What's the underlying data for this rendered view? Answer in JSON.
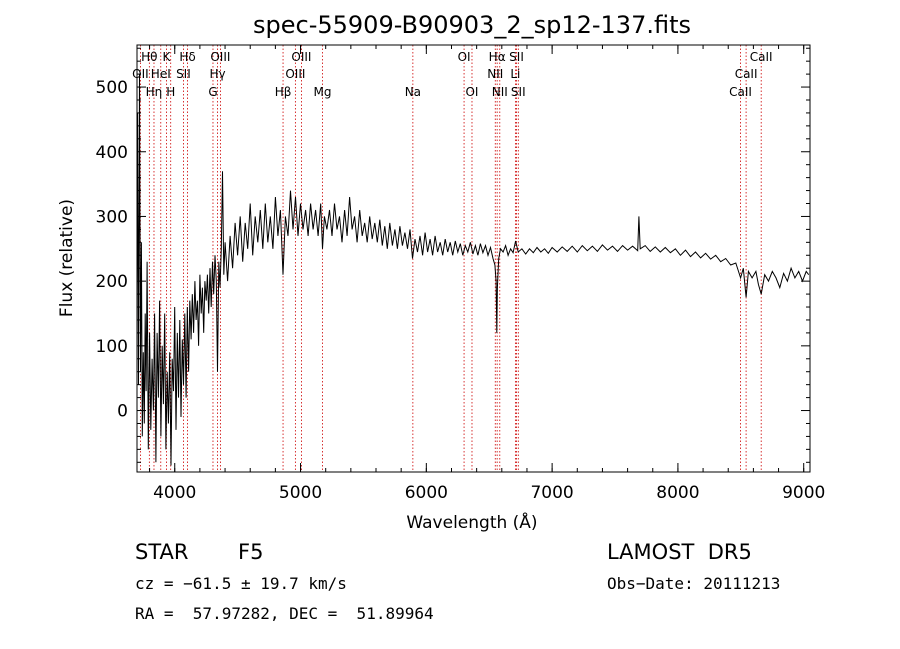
{
  "chart_data": {
    "type": "line",
    "title": "spec-55909-B90903_2_sp12-137.fits",
    "xlabel": "Wavelength (Å)",
    "ylabel": "Flux (relative)",
    "xlim": [
      3700,
      9050
    ],
    "ylim": [
      -95,
      565
    ],
    "xticks": [
      4000,
      5000,
      6000,
      7000,
      8000,
      9000
    ],
    "yticks": [
      0,
      100,
      200,
      300,
      400,
      500
    ],
    "series": [
      {
        "points": [
          [
            3700,
            180
          ],
          [
            3705,
            460
          ],
          [
            3712,
            40
          ],
          [
            3720,
            520
          ],
          [
            3728,
            60
          ],
          [
            3735,
            260
          ],
          [
            3742,
            -40
          ],
          [
            3750,
            90
          ],
          [
            3758,
            -20
          ],
          [
            3765,
            150
          ],
          [
            3772,
            30
          ],
          [
            3780,
            230
          ],
          [
            3790,
            -60
          ],
          [
            3800,
            120
          ],
          [
            3810,
            -30
          ],
          [
            3820,
            80
          ],
          [
            3830,
            0
          ],
          [
            3840,
            150
          ],
          [
            3850,
            -80
          ],
          [
            3860,
            120
          ],
          [
            3870,
            20
          ],
          [
            3880,
            170
          ],
          [
            3890,
            -40
          ],
          [
            3900,
            100
          ],
          [
            3910,
            10
          ],
          [
            3920,
            150
          ],
          [
            3930,
            -60
          ],
          [
            3940,
            60
          ],
          [
            3950,
            -20
          ],
          [
            3960,
            90
          ],
          [
            3970,
            -85
          ],
          [
            3980,
            80
          ],
          [
            3990,
            30
          ],
          [
            4000,
            160
          ],
          [
            4010,
            -30
          ],
          [
            4020,
            120
          ],
          [
            4030,
            20
          ],
          [
            4040,
            140
          ],
          [
            4050,
            -10
          ],
          [
            4060,
            110
          ],
          [
            4070,
            40
          ],
          [
            4080,
            150
          ],
          [
            4090,
            20
          ],
          [
            4100,
            160
          ],
          [
            4110,
            60
          ],
          [
            4120,
            170
          ],
          [
            4130,
            110
          ],
          [
            4140,
            180
          ],
          [
            4150,
            120
          ],
          [
            4160,
            200
          ],
          [
            4170,
            140
          ],
          [
            4180,
            170
          ],
          [
            4190,
            100
          ],
          [
            4200,
            210
          ],
          [
            4210,
            150
          ],
          [
            4220,
            190
          ],
          [
            4230,
            120
          ],
          [
            4240,
            200
          ],
          [
            4250,
            170
          ],
          [
            4260,
            210
          ],
          [
            4270,
            150
          ],
          [
            4280,
            220
          ],
          [
            4290,
            160
          ],
          [
            4300,
            230
          ],
          [
            4310,
            180
          ],
          [
            4320,
            240
          ],
          [
            4330,
            200
          ],
          [
            4340,
            60
          ],
          [
            4350,
            230
          ],
          [
            4360,
            190
          ],
          [
            4370,
            250
          ],
          [
            4380,
            370
          ],
          [
            4390,
            210
          ],
          [
            4400,
            260
          ],
          [
            4420,
            200
          ],
          [
            4440,
            270
          ],
          [
            4460,
            220
          ],
          [
            4480,
            290
          ],
          [
            4500,
            240
          ],
          [
            4520,
            300
          ],
          [
            4540,
            230
          ],
          [
            4560,
            290
          ],
          [
            4580,
            250
          ],
          [
            4600,
            320
          ],
          [
            4620,
            240
          ],
          [
            4640,
            300
          ],
          [
            4660,
            260
          ],
          [
            4680,
            310
          ],
          [
            4700,
            250
          ],
          [
            4720,
            320
          ],
          [
            4740,
            260
          ],
          [
            4760,
            300
          ],
          [
            4780,
            250
          ],
          [
            4800,
            330
          ],
          [
            4820,
            270
          ],
          [
            4840,
            310
          ],
          [
            4861,
            210
          ],
          [
            4880,
            300
          ],
          [
            4900,
            270
          ],
          [
            4920,
            340
          ],
          [
            4940,
            280
          ],
          [
            4960,
            330
          ],
          [
            4980,
            270
          ],
          [
            5000,
            320
          ],
          [
            5020,
            280
          ],
          [
            5040,
            310
          ],
          [
            5060,
            270
          ],
          [
            5080,
            320
          ],
          [
            5100,
            280
          ],
          [
            5120,
            310
          ],
          [
            5140,
            270
          ],
          [
            5160,
            320
          ],
          [
            5175,
            250
          ],
          [
            5190,
            300
          ],
          [
            5210,
            280
          ],
          [
            5230,
            310
          ],
          [
            5250,
            270
          ],
          [
            5270,
            320
          ],
          [
            5290,
            280
          ],
          [
            5310,
            300
          ],
          [
            5330,
            260
          ],
          [
            5350,
            310
          ],
          [
            5370,
            270
          ],
          [
            5390,
            330
          ],
          [
            5410,
            280
          ],
          [
            5430,
            300
          ],
          [
            5450,
            260
          ],
          [
            5470,
            310
          ],
          [
            5490,
            270
          ],
          [
            5510,
            290
          ],
          [
            5530,
            260
          ],
          [
            5550,
            300
          ],
          [
            5570,
            265
          ],
          [
            5590,
            290
          ],
          [
            5610,
            260
          ],
          [
            5630,
            295
          ],
          [
            5650,
            255
          ],
          [
            5670,
            285
          ],
          [
            5690,
            250
          ],
          [
            5710,
            290
          ],
          [
            5730,
            255
          ],
          [
            5750,
            280
          ],
          [
            5770,
            250
          ],
          [
            5790,
            285
          ],
          [
            5810,
            255
          ],
          [
            5830,
            275
          ],
          [
            5850,
            250
          ],
          [
            5870,
            280
          ],
          [
            5890,
            235
          ],
          [
            5910,
            265
          ],
          [
            5930,
            245
          ],
          [
            5950,
            270
          ],
          [
            5970,
            240
          ],
          [
            5990,
            275
          ],
          [
            6010,
            245
          ],
          [
            6030,
            265
          ],
          [
            6050,
            240
          ],
          [
            6070,
            270
          ],
          [
            6090,
            245
          ],
          [
            6110,
            260
          ],
          [
            6130,
            240
          ],
          [
            6150,
            265
          ],
          [
            6170,
            245
          ],
          [
            6190,
            260
          ],
          [
            6210,
            240
          ],
          [
            6230,
            262
          ],
          [
            6250,
            245
          ],
          [
            6270,
            258
          ],
          [
            6290,
            240
          ],
          [
            6310,
            255
          ],
          [
            6330,
            245
          ],
          [
            6350,
            260
          ],
          [
            6370,
            242
          ],
          [
            6390,
            255
          ],
          [
            6410,
            240
          ],
          [
            6430,
            258
          ],
          [
            6450,
            244
          ],
          [
            6470,
            255
          ],
          [
            6490,
            240
          ],
          [
            6510,
            252
          ],
          [
            6530,
            235
          ],
          [
            6545,
            225
          ],
          [
            6555,
            200
          ],
          [
            6560,
            120
          ],
          [
            6565,
            190
          ],
          [
            6575,
            235
          ],
          [
            6590,
            250
          ],
          [
            6610,
            245
          ],
          [
            6630,
            255
          ],
          [
            6650,
            240
          ],
          [
            6670,
            250
          ],
          [
            6690,
            244
          ],
          [
            6710,
            262
          ],
          [
            6730,
            245
          ],
          [
            6760,
            250
          ],
          [
            6790,
            242
          ],
          [
            6820,
            250
          ],
          [
            6850,
            244
          ],
          [
            6880,
            252
          ],
          [
            6910,
            245
          ],
          [
            6940,
            250
          ],
          [
            6970,
            243
          ],
          [
            7000,
            252
          ],
          [
            7040,
            245
          ],
          [
            7080,
            253
          ],
          [
            7120,
            246
          ],
          [
            7160,
            254
          ],
          [
            7200,
            245
          ],
          [
            7240,
            255
          ],
          [
            7280,
            247
          ],
          [
            7320,
            254
          ],
          [
            7360,
            246
          ],
          [
            7400,
            256
          ],
          [
            7440,
            248
          ],
          [
            7480,
            254
          ],
          [
            7520,
            246
          ],
          [
            7560,
            255
          ],
          [
            7600,
            248
          ],
          [
            7640,
            254
          ],
          [
            7680,
            247
          ],
          [
            7690,
            300
          ],
          [
            7700,
            250
          ],
          [
            7740,
            255
          ],
          [
            7780,
            246
          ],
          [
            7820,
            253
          ],
          [
            7860,
            245
          ],
          [
            7900,
            252
          ],
          [
            7940,
            244
          ],
          [
            7980,
            250
          ],
          [
            8020,
            240
          ],
          [
            8060,
            248
          ],
          [
            8100,
            238
          ],
          [
            8140,
            245
          ],
          [
            8180,
            236
          ],
          [
            8220,
            243
          ],
          [
            8260,
            234
          ],
          [
            8300,
            240
          ],
          [
            8340,
            230
          ],
          [
            8380,
            235
          ],
          [
            8420,
            225
          ],
          [
            8460,
            228
          ],
          [
            8498,
            205
          ],
          [
            8520,
            220
          ],
          [
            8542,
            175
          ],
          [
            8560,
            215
          ],
          [
            8590,
            205
          ],
          [
            8620,
            215
          ],
          [
            8640,
            195
          ],
          [
            8662,
            180
          ],
          [
            8690,
            210
          ],
          [
            8720,
            200
          ],
          [
            8750,
            215
          ],
          [
            8780,
            205
          ],
          [
            8810,
            190
          ],
          [
            8840,
            212
          ],
          [
            8870,
            200
          ],
          [
            8900,
            220
          ],
          [
            8930,
            205
          ],
          [
            8960,
            215
          ],
          [
            8990,
            200
          ],
          [
            9020,
            215
          ],
          [
            9040,
            210
          ]
        ]
      }
    ],
    "lines": [
      {
        "label": "Hθ",
        "x": 3798,
        "row": 0
      },
      {
        "label": "K",
        "x": 3934,
        "row": 0
      },
      {
        "label": "Hδ",
        "x": 4102,
        "row": 0
      },
      {
        "label": "OIII",
        "x": 4363,
        "row": 0
      },
      {
        "label": "OIII",
        "x": 5007,
        "row": 0
      },
      {
        "label": "OI",
        "x": 6300,
        "row": 0
      },
      {
        "label": "Hα",
        "x": 6563,
        "row": 0
      },
      {
        "label": "SII",
        "x": 6717,
        "row": 0
      },
      {
        "label": "CaII",
        "x": 8662,
        "row": 0
      },
      {
        "label": "OII",
        "x": 3727,
        "row": 1
      },
      {
        "label": "HeI",
        "x": 3889,
        "row": 1
      },
      {
        "label": "SII",
        "x": 4069,
        "row": 1
      },
      {
        "label": "Hγ",
        "x": 4340,
        "row": 1
      },
      {
        "label": "OIII",
        "x": 4959,
        "row": 1
      },
      {
        "label": "NII",
        "x": 6548,
        "row": 1
      },
      {
        "label": "Li",
        "x": 6708,
        "row": 1
      },
      {
        "label": "CaII",
        "x": 8542,
        "row": 1
      },
      {
        "label": "Hη",
        "x": 3835,
        "row": 2
      },
      {
        "label": "H",
        "x": 3968,
        "row": 2
      },
      {
        "label": "G",
        "x": 4304,
        "row": 2
      },
      {
        "label": "Hβ",
        "x": 4861,
        "row": 2
      },
      {
        "label": "Mg",
        "x": 5175,
        "row": 2
      },
      {
        "label": "Na",
        "x": 5893,
        "row": 2
      },
      {
        "label": "OI",
        "x": 6363,
        "row": 2
      },
      {
        "label": "NII",
        "x": 6584,
        "row": 2
      },
      {
        "label": "SII",
        "x": 6731,
        "row": 2
      },
      {
        "label": "CaII",
        "x": 8498,
        "row": 2
      }
    ],
    "colors": {
      "spectrum": "#000000",
      "lines": "#cc0000"
    },
    "grid": false
  },
  "info": {
    "class": "STAR",
    "subclass": "F5",
    "survey": "LAMOST  DR5",
    "cz": "cz = −61.5 ± 19.7 km/s",
    "obs_date": "Obs−Date: 20111213",
    "coords": "RA =  57.97282, DEC =  51.89964"
  }
}
